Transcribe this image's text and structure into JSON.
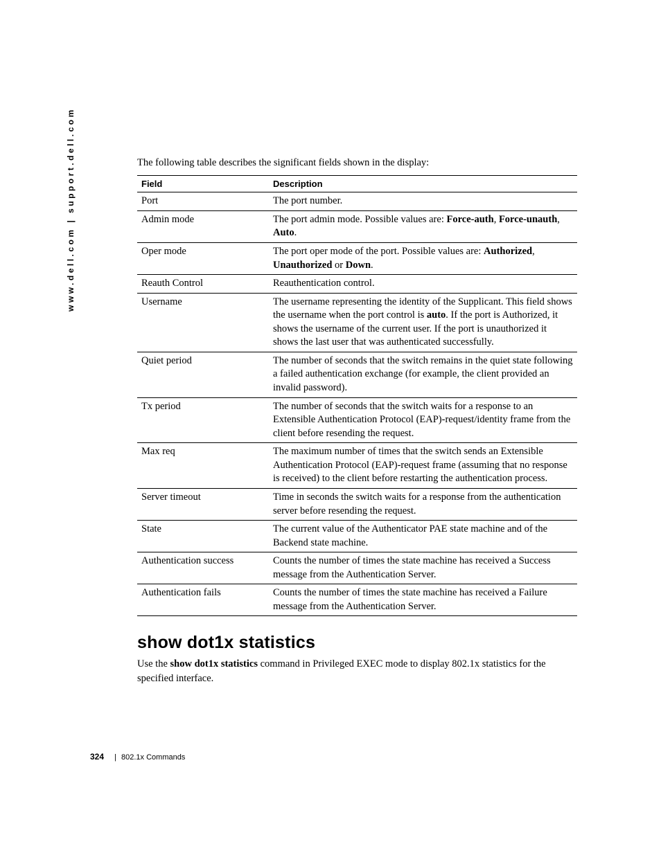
{
  "side_url": "www.dell.com | support.dell.com",
  "intro_text": "The following table describes the significant fields shown in the display:",
  "table": {
    "header_field": "Field",
    "header_desc": "Description",
    "rows": [
      {
        "field": "Port",
        "desc": "The port number."
      },
      {
        "field": "Admin mode",
        "desc": "The port admin mode. Possible values are: <b>Force-auth</b>, <b>Force-unauth</b>, <b>Auto</b>."
      },
      {
        "field": "Oper mode",
        "desc": "The port oper mode of the port. Possible values are: <b>Authorized</b>, <b>Unauthorized</b> or <b>Down</b>."
      },
      {
        "field": "Reauth Control",
        "desc": "Reauthentication control."
      },
      {
        "field": "Username",
        "desc": "The username representing the identity of the Supplicant. This field shows the username when the port control is <b>auto</b>. If the port is Authorized, it shows the username of the current user. If the port is unauthorized it shows the last user that was authenticated successfully."
      },
      {
        "field": "Quiet period",
        "desc": "The number of seconds that the switch remains in the quiet state following a failed authentication exchange (for example, the client provided an invalid password)."
      },
      {
        "field": "Tx period",
        "desc": "The number of seconds that the switch waits for a response to an Extensible Authentication Protocol (EAP)-request/identity frame from the client before resending the request."
      },
      {
        "field": "Max req",
        "desc": "The maximum number of times that the switch sends an Extensible Authentication Protocol (EAP)-request frame (assuming that no response is received) to the client before restarting the authentication process."
      },
      {
        "field": "Server timeout",
        "desc": "Time in seconds the switch waits for a response from the authentication server before resending the request."
      },
      {
        "field": "State",
        "desc": "The current value of the Authenticator PAE state machine and of the Backend state machine."
      },
      {
        "field": "Authentication success",
        "desc": "Counts the number of times the state machine has received a Success message from the Authentication Server."
      },
      {
        "field": "Authentication fails",
        "desc": "Counts the number of times the state machine has received a Failure message from the Authentication Server."
      }
    ]
  },
  "section": {
    "title": "show dot1x statistics",
    "body": "Use the <b>show dot1x statistics</b> command in Privileged EXEC mode to display 802.1x statistics for the specified interface."
  },
  "footer": {
    "page": "324",
    "separator": "|",
    "chapter": "802.1x Commands"
  }
}
